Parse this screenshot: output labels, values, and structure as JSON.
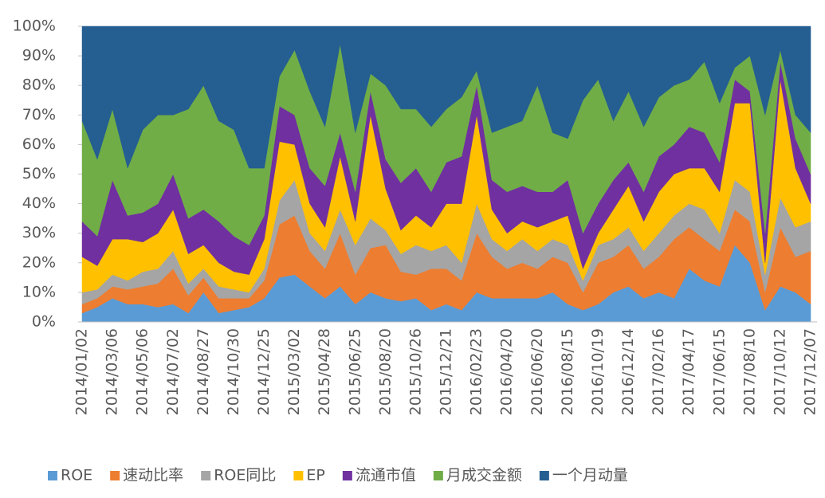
{
  "chart_data": {
    "type": "stacked_area_100",
    "categories": [
      "2014/01/02",
      null,
      "2014/03/06",
      null,
      "2014/05/06",
      null,
      "2014/07/02",
      null,
      "2014/08/27",
      null,
      "2014/10/30",
      null,
      "2014/12/25",
      null,
      "2015/03/02",
      null,
      "2015/04/28",
      null,
      "2015/06/25",
      null,
      "2015/08/20",
      null,
      "2015/10/26",
      null,
      "2015/12/21",
      null,
      "2016/02/23",
      null,
      "2016/04/20",
      null,
      "2016/06/20",
      null,
      "2016/08/15",
      null,
      "2016/10/19",
      null,
      "2016/12/14",
      null,
      "2017/02/16",
      null,
      "2017/04/17",
      null,
      "2017/06/15",
      null,
      "2017/08/10",
      null,
      "2017/10/12",
      null,
      "2017/12/07"
    ],
    "series": [
      {
        "name": "ROE",
        "color": "#5b9bd5",
        "values": [
          3,
          5,
          8,
          6,
          6,
          5,
          6,
          3,
          10,
          3,
          4,
          5,
          8,
          15,
          16,
          12,
          8,
          12,
          6,
          10,
          8,
          7,
          8,
          4,
          6,
          4,
          10,
          8,
          8,
          8,
          8,
          10,
          6,
          4,
          6,
          10,
          12,
          8,
          10,
          8,
          18,
          14,
          12,
          26,
          20,
          4,
          12,
          10,
          6
        ]
      },
      {
        "name": "速动比率",
        "color": "#ed7d31",
        "values": [
          3,
          3,
          4,
          5,
          6,
          8,
          12,
          6,
          5,
          5,
          4,
          3,
          6,
          18,
          20,
          12,
          10,
          18,
          10,
          15,
          18,
          10,
          8,
          14,
          12,
          10,
          20,
          14,
          10,
          12,
          10,
          12,
          14,
          6,
          14,
          12,
          14,
          10,
          12,
          20,
          14,
          14,
          12,
          12,
          14,
          6,
          20,
          12,
          18
        ]
      },
      {
        "name": "ROE同比",
        "color": "#a5a5a5",
        "values": [
          4,
          3,
          4,
          3,
          5,
          5,
          6,
          4,
          3,
          4,
          3,
          2,
          4,
          8,
          12,
          6,
          6,
          8,
          10,
          10,
          5,
          6,
          10,
          6,
          8,
          6,
          10,
          6,
          6,
          8,
          6,
          6,
          6,
          4,
          6,
          6,
          6,
          6,
          8,
          8,
          8,
          10,
          6,
          10,
          10,
          6,
          10,
          10,
          10
        ]
      },
      {
        "name": "EP",
        "color": "#ffc000",
        "values": [
          12,
          8,
          12,
          14,
          10,
          12,
          14,
          10,
          8,
          8,
          6,
          6,
          10,
          20,
          12,
          10,
          8,
          18,
          8,
          35,
          14,
          8,
          10,
          8,
          14,
          20,
          30,
          10,
          6,
          6,
          8,
          6,
          10,
          4,
          4,
          10,
          14,
          10,
          14,
          14,
          12,
          14,
          14,
          26,
          30,
          4,
          40,
          20,
          6
        ]
      },
      {
        "name": "流通市值",
        "color": "#7030a0",
        "values": [
          12,
          10,
          20,
          8,
          10,
          10,
          12,
          12,
          12,
          14,
          12,
          10,
          8,
          12,
          10,
          12,
          14,
          8,
          10,
          8,
          10,
          16,
          16,
          12,
          14,
          16,
          10,
          10,
          14,
          12,
          12,
          10,
          12,
          12,
          10,
          10,
          8,
          10,
          12,
          10,
          14,
          12,
          10,
          8,
          4,
          10,
          6,
          10,
          10
        ]
      },
      {
        "name": "月成交金额",
        "color": "#70ad47",
        "values": [
          34,
          26,
          24,
          16,
          28,
          30,
          20,
          37,
          42,
          34,
          36,
          26,
          16,
          10,
          22,
          26,
          20,
          30,
          20,
          6,
          25,
          25,
          20,
          22,
          18,
          20,
          5,
          16,
          22,
          22,
          36,
          20,
          14,
          45,
          42,
          20,
          24,
          22,
          20,
          20,
          16,
          24,
          20,
          4,
          12,
          40,
          4,
          8,
          14
        ]
      },
      {
        "name": "一个月动量",
        "color": "#255e91",
        "values": [
          32,
          45,
          28,
          48,
          35,
          30,
          30,
          28,
          20,
          32,
          35,
          48,
          48,
          17,
          8,
          22,
          34,
          6,
          36,
          16,
          20,
          28,
          28,
          34,
          28,
          24,
          15,
          36,
          34,
          32,
          20,
          36,
          38,
          25,
          18,
          32,
          22,
          34,
          24,
          20,
          18,
          12,
          26,
          14,
          10,
          30,
          8,
          30,
          36
        ]
      }
    ],
    "ylim": [
      0,
      100
    ],
    "yticks": [
      {
        "value": 0,
        "label": "0%"
      },
      {
        "value": 10,
        "label": "10%"
      },
      {
        "value": 20,
        "label": "20%"
      },
      {
        "value": 30,
        "label": "30%"
      },
      {
        "value": 40,
        "label": "40%"
      },
      {
        "value": 50,
        "label": "50%"
      },
      {
        "value": 60,
        "label": "60%"
      },
      {
        "value": 70,
        "label": "70%"
      },
      {
        "value": 80,
        "label": "80%"
      },
      {
        "value": 90,
        "label": "90%"
      },
      {
        "value": 100,
        "label": "100%"
      }
    ],
    "legend": "bottom"
  }
}
